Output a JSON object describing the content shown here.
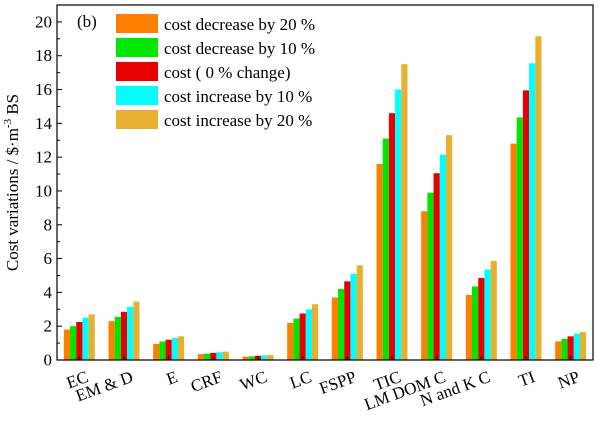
{
  "chart_data": {
    "type": "bar",
    "panel_label": "(b)",
    "ylabel": {
      "main": "Cost variations / $·m",
      "sup": "-3",
      "tail": " BS"
    },
    "ylim": [
      0,
      21
    ],
    "yticks": [
      0,
      2,
      4,
      6,
      8,
      10,
      12,
      14,
      16,
      18,
      20
    ],
    "categories": [
      "EC",
      "EM & D",
      "E",
      "CRF",
      "WC",
      "LC",
      "FSPP",
      "TIC",
      "LM DOM C",
      "N and K C",
      "TI",
      "NP"
    ],
    "series": [
      {
        "name": "cost decrease by 20 %",
        "color": "#ff8000",
        "values": [
          1.8,
          2.3,
          0.95,
          0.35,
          0.2,
          2.2,
          3.7,
          11.6,
          8.8,
          3.85,
          12.8,
          1.1
        ]
      },
      {
        "name": "cost decrease by 10 %",
        "color": "#00e600",
        "values": [
          2.0,
          2.55,
          1.1,
          0.38,
          0.22,
          2.45,
          4.2,
          13.1,
          9.9,
          4.35,
          14.35,
          1.25
        ]
      },
      {
        "name": "cost ( 0 % change)",
        "color": "#e60000",
        "values": [
          2.25,
          2.85,
          1.2,
          0.42,
          0.25,
          2.75,
          4.65,
          14.6,
          11.05,
          4.85,
          15.95,
          1.4
        ]
      },
      {
        "name": "cost increase by 10 %",
        "color": "#00ffff",
        "values": [
          2.5,
          3.15,
          1.3,
          0.46,
          0.28,
          3.0,
          5.1,
          16.0,
          12.15,
          5.35,
          17.55,
          1.55
        ]
      },
      {
        "name": "cost increase by 20 %",
        "color": "#e8b030",
        "values": [
          2.7,
          3.45,
          1.4,
          0.5,
          0.3,
          3.3,
          5.6,
          17.5,
          13.3,
          5.85,
          19.15,
          1.65
        ]
      }
    ],
    "legend_position": "top-left",
    "grid": false
  }
}
